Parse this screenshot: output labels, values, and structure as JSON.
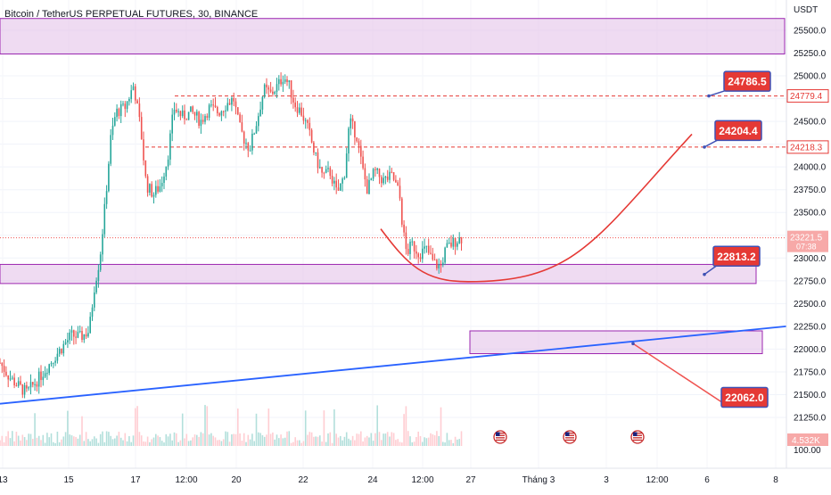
{
  "header": {
    "title": "Bitcoin / TetherUS PERPETUAL FUTURES, 30, BINANCE",
    "currency": "USDT"
  },
  "colors": {
    "up": "#26a69a",
    "down": "#ef5350",
    "zone_fill": "#e1bee7",
    "zone_border": "#9c27b0",
    "trendline": "#2962ff",
    "curve": "#e53935",
    "callout": "#e53935",
    "callout_border": "#3f51b5",
    "dashed": "#e53935"
  },
  "chart_data": {
    "type": "candlestick",
    "ylim": [
      20970,
      25980
    ],
    "y_ticks": [
      {
        "value": 25500,
        "label": "25500.0"
      },
      {
        "value": 25250,
        "label": "25250.0"
      },
      {
        "value": 25000,
        "label": "25000.0"
      },
      {
        "value": 24750,
        "label": "24750.0"
      },
      {
        "value": 24500,
        "label": "24500.0"
      },
      {
        "value": 24250,
        "label": "24250.0"
      },
      {
        "value": 24000,
        "label": "24000.0"
      },
      {
        "value": 23750,
        "label": "23750.0"
      },
      {
        "value": 23500,
        "label": "23500.0"
      },
      {
        "value": 23250,
        "label": "23250.0"
      },
      {
        "value": 23000,
        "label": "23000.0"
      },
      {
        "value": 22750,
        "label": "22750.0"
      },
      {
        "value": 22500,
        "label": "22500.0"
      },
      {
        "value": 22250,
        "label": "22250.0"
      },
      {
        "value": 22000,
        "label": "22000.0"
      },
      {
        "value": 21750,
        "label": "21750.0"
      },
      {
        "value": 21500,
        "label": "21500.0"
      },
      {
        "value": 21250,
        "label": "21250.0"
      }
    ],
    "volume_axis_label": "100.00",
    "x_ticks": [
      "13",
      "15",
      "17",
      "12:00",
      "20",
      "22",
      "24",
      "12:00",
      "27",
      "Tháng 3",
      "3",
      "12:00",
      "6",
      "8"
    ],
    "price_path": [
      {
        "t": 0,
        "p": 21850
      },
      {
        "t": 10,
        "p": 21700
      },
      {
        "t": 20,
        "p": 21600
      },
      {
        "t": 30,
        "p": 21520
      },
      {
        "t": 45,
        "p": 21700
      },
      {
        "t": 60,
        "p": 21900
      },
      {
        "t": 72,
        "p": 22050
      },
      {
        "t": 80,
        "p": 22150
      },
      {
        "t": 90,
        "p": 22130
      },
      {
        "t": 100,
        "p": 22200
      },
      {
        "t": 106,
        "p": 22700
      },
      {
        "t": 112,
        "p": 23000
      },
      {
        "t": 118,
        "p": 23600
      },
      {
        "t": 124,
        "p": 24300
      },
      {
        "t": 130,
        "p": 24600
      },
      {
        "t": 140,
        "p": 24650
      },
      {
        "t": 150,
        "p": 24900
      },
      {
        "t": 158,
        "p": 24400
      },
      {
        "t": 164,
        "p": 23800
      },
      {
        "t": 172,
        "p": 23700
      },
      {
        "t": 180,
        "p": 23800
      },
      {
        "t": 188,
        "p": 24100
      },
      {
        "t": 195,
        "p": 24650
      },
      {
        "t": 205,
        "p": 24550
      },
      {
        "t": 215,
        "p": 24600
      },
      {
        "t": 225,
        "p": 24500
      },
      {
        "t": 235,
        "p": 24650
      },
      {
        "t": 245,
        "p": 24600
      },
      {
        "t": 255,
        "p": 24700
      },
      {
        "t": 262,
        "p": 24750
      },
      {
        "t": 268,
        "p": 24450
      },
      {
        "t": 274,
        "p": 24300
      },
      {
        "t": 280,
        "p": 24200
      },
      {
        "t": 288,
        "p": 24500
      },
      {
        "t": 296,
        "p": 24850
      },
      {
        "t": 304,
        "p": 24800
      },
      {
        "t": 312,
        "p": 24900
      },
      {
        "t": 318,
        "p": 25000
      },
      {
        "t": 324,
        "p": 24900
      },
      {
        "t": 330,
        "p": 24700
      },
      {
        "t": 338,
        "p": 24600
      },
      {
        "t": 346,
        "p": 24400
      },
      {
        "t": 354,
        "p": 24100
      },
      {
        "t": 362,
        "p": 23900
      },
      {
        "t": 370,
        "p": 23950
      },
      {
        "t": 378,
        "p": 23700
      },
      {
        "t": 386,
        "p": 23900
      },
      {
        "t": 392,
        "p": 24500
      },
      {
        "t": 400,
        "p": 24350
      },
      {
        "t": 406,
        "p": 24000
      },
      {
        "t": 412,
        "p": 23750
      },
      {
        "t": 420,
        "p": 23950
      },
      {
        "t": 430,
        "p": 23850
      },
      {
        "t": 440,
        "p": 23900
      },
      {
        "t": 448,
        "p": 23700
      },
      {
        "t": 452,
        "p": 23300
      },
      {
        "t": 456,
        "p": 23050
      },
      {
        "t": 462,
        "p": 23150
      },
      {
        "t": 470,
        "p": 23050
      },
      {
        "t": 478,
        "p": 23100
      },
      {
        "t": 486,
        "p": 22950
      },
      {
        "t": 494,
        "p": 22900
      },
      {
        "t": 500,
        "p": 23100
      },
      {
        "t": 506,
        "p": 23150
      },
      {
        "t": 512,
        "p": 23200
      },
      {
        "t": 518,
        "p": 23220
      }
    ],
    "zones": [
      {
        "name": "top-resistance-zone",
        "price_from": 25240,
        "price_to": 25630,
        "x_from": 0,
        "x_to": 880
      },
      {
        "name": "support-zone",
        "price_from": 22720,
        "price_to": 22930,
        "x_from": 0,
        "x_to": 848
      },
      {
        "name": "lower-target-zone",
        "price_from": 21950,
        "price_to": 22200,
        "x_from": 527,
        "x_to": 855
      }
    ],
    "dashed_levels": [
      {
        "price": 24779.4,
        "label": "24779.4",
        "x_from": 196
      },
      {
        "price": 24218.3,
        "label": "24218.3",
        "x_from": 163
      }
    ],
    "current_price": {
      "price": 23221.5,
      "label": "23221.5",
      "countdown": "07:38"
    },
    "volume_badge": "4.532K",
    "trendline": {
      "x1": 0,
      "p1": 21400,
      "x2": 882,
      "p2": 22250
    },
    "curve": {
      "start": {
        "x": 427,
        "p": 23320
      },
      "bottom": {
        "x": 525,
        "p": 22740
      },
      "end": {
        "x": 776,
        "p": 24360
      }
    },
    "callouts": [
      {
        "label": "24786.5",
        "price": 24940,
        "x": 838,
        "anchor_price": 24779.4,
        "anchor_x": 795
      },
      {
        "label": "24204.4",
        "price": 24400,
        "x": 828,
        "anchor_price": 24218.3,
        "anchor_x": 790
      },
      {
        "label": "22813.2",
        "price": 23020,
        "x": 826,
        "anchor_price": 22820,
        "anchor_x": 790
      },
      {
        "label": "22062.0",
        "price": 21470,
        "x": 835,
        "anchor_price": 22060,
        "anchor_x": 710
      }
    ],
    "events": [
      {
        "x": 561
      },
      {
        "x": 639
      },
      {
        "x": 715
      }
    ]
  }
}
